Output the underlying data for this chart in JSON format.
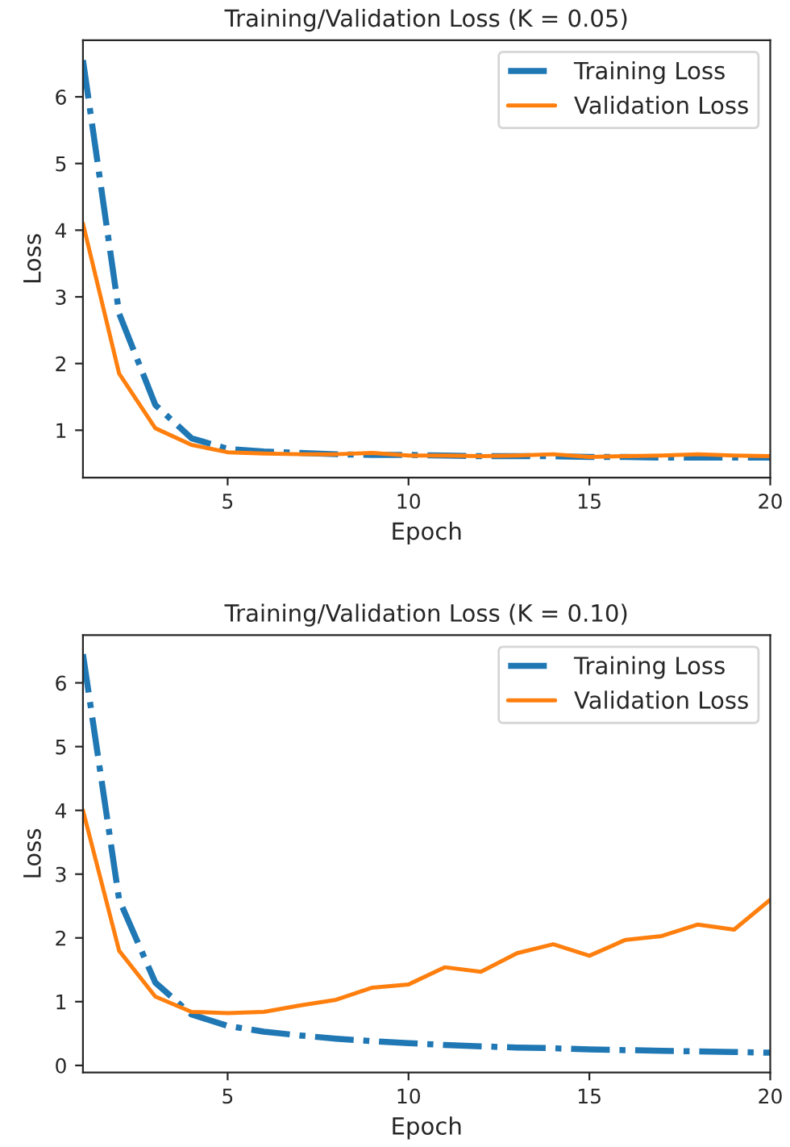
{
  "chart_data": [
    {
      "type": "line",
      "title": "Training/Validation Loss (K = 0.05)",
      "xlabel": "Epoch",
      "ylabel": "Loss",
      "x": [
        1,
        2,
        3,
        4,
        5,
        6,
        7,
        8,
        9,
        10,
        11,
        12,
        13,
        14,
        15,
        16,
        17,
        18,
        19,
        20
      ],
      "series": [
        {
          "name": "Training Loss",
          "color": "#1f77b4",
          "line_style": "dashdot",
          "values": [
            6.55,
            2.75,
            1.38,
            0.88,
            0.72,
            0.68,
            0.66,
            0.64,
            0.63,
            0.63,
            0.62,
            0.61,
            0.61,
            0.61,
            0.6,
            0.6,
            0.59,
            0.59,
            0.59,
            0.59
          ]
        },
        {
          "name": "Validation Loss",
          "color": "#ff7f0e",
          "line_style": "solid",
          "values": [
            4.1,
            1.85,
            1.03,
            0.78,
            0.67,
            0.65,
            0.64,
            0.64,
            0.66,
            0.62,
            0.62,
            0.61,
            0.62,
            0.64,
            0.6,
            0.61,
            0.62,
            0.64,
            0.62,
            0.61
          ]
        }
      ],
      "xlim": [
        1,
        20
      ],
      "xticks": [
        5,
        10,
        15,
        20
      ],
      "ylim": [
        0.29,
        6.85
      ],
      "yticks": [
        1,
        2,
        3,
        4,
        5,
        6
      ],
      "legend": "top right",
      "grid": false
    },
    {
      "type": "line",
      "title": "Training/Validation Loss (K = 0.10)",
      "xlabel": "Epoch",
      "ylabel": "Loss",
      "x": [
        1,
        2,
        3,
        4,
        5,
        6,
        7,
        8,
        9,
        10,
        11,
        12,
        13,
        14,
        15,
        16,
        17,
        18,
        19,
        20
      ],
      "series": [
        {
          "name": "Training Loss",
          "color": "#1f77b4",
          "line_style": "dashdot",
          "values": [
            6.45,
            2.6,
            1.3,
            0.8,
            0.62,
            0.53,
            0.47,
            0.42,
            0.38,
            0.35,
            0.32,
            0.3,
            0.28,
            0.27,
            0.25,
            0.24,
            0.23,
            0.22,
            0.21,
            0.2
          ]
        },
        {
          "name": "Validation Loss",
          "color": "#ff7f0e",
          "line_style": "solid",
          "values": [
            4.0,
            1.8,
            1.08,
            0.84,
            0.82,
            0.84,
            0.94,
            1.03,
            1.22,
            1.27,
            1.54,
            1.47,
            1.76,
            1.9,
            1.72,
            1.97,
            2.03,
            2.21,
            2.13,
            2.6
          ]
        }
      ],
      "xlim": [
        1,
        20
      ],
      "xticks": [
        5,
        10,
        15,
        20
      ],
      "ylim": [
        -0.11,
        6.75
      ],
      "yticks": [
        0,
        1,
        2,
        3,
        4,
        5,
        6
      ],
      "legend": "top right",
      "grid": false
    }
  ]
}
